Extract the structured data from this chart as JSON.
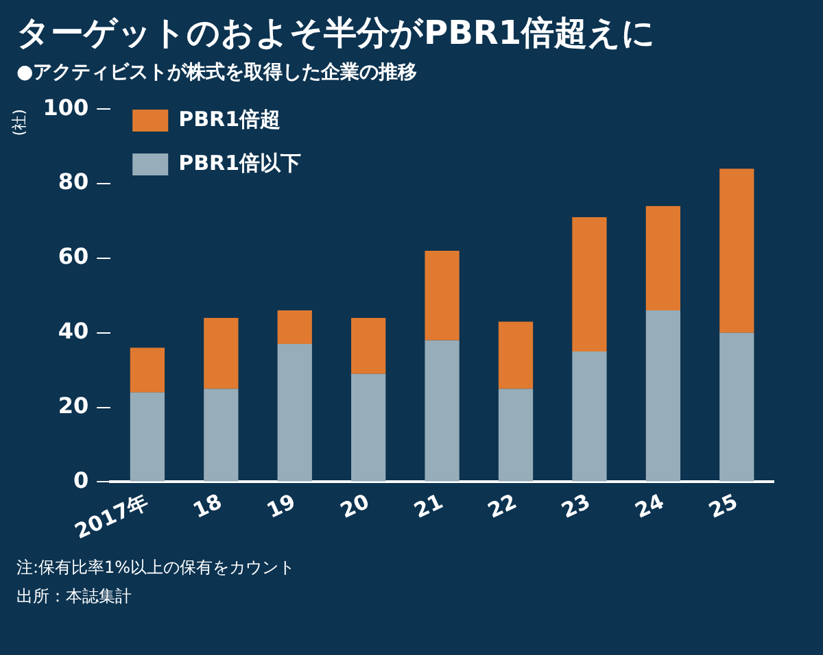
{
  "chart_data": {
    "type": "bar",
    "title": "ターゲットのおよそ半分がPBR1倍超えに",
    "subtitle": "●アクティビストが株式を取得した企業の推移",
    "ylabel": "(社)",
    "categories": [
      "2017年",
      "18",
      "19",
      "20",
      "21",
      "22",
      "23",
      "24",
      "25"
    ],
    "stacked": true,
    "series": [
      {
        "name": "PBR1倍以下",
        "color": "#97adb9",
        "values": [
          24,
          25,
          37,
          29,
          38,
          25,
          35,
          46,
          40
        ]
      },
      {
        "name": "PBR1倍超",
        "color": "#e07a30",
        "values": [
          12,
          19,
          9,
          15,
          24,
          18,
          36,
          28,
          44
        ]
      }
    ],
    "ylim": [
      0,
      100
    ],
    "yticks": [
      0,
      20,
      40,
      60,
      80,
      100
    ],
    "grid": false,
    "legend": "top left",
    "annotations": [
      "注:保有比率1%以上の保有をカウント",
      "出所：本誌集計"
    ]
  }
}
